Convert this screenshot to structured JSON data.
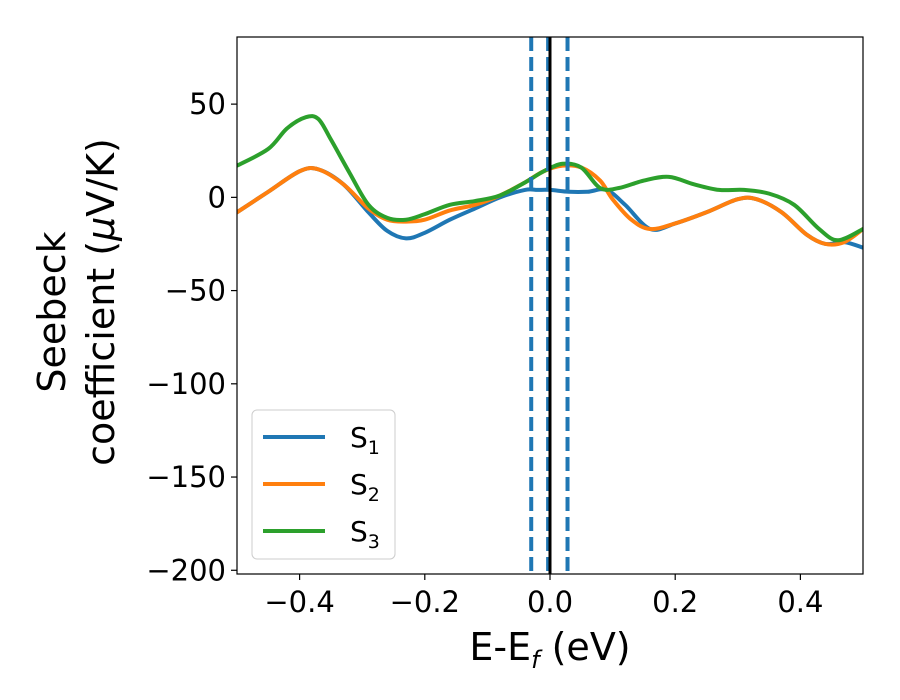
{
  "chart_data": {
    "type": "line",
    "xlabel": "E-E",
    "xlabel_sub": "f",
    "xlabel_unit": " (eV)",
    "ylabel_line1": "Seebeck",
    "ylabel_line2": "coefficient  (",
    "ylabel_mu": "μ",
    "ylabel_unit": "V/K)",
    "xlim": [
      -0.5,
      0.5
    ],
    "ylim": [
      -202,
      86
    ],
    "x_ticks": [
      -0.4,
      -0.2,
      0.0,
      0.2,
      0.4
    ],
    "x_tick_labels": [
      "−0.4",
      "−0.2",
      "0.0",
      "0.2",
      "0.4"
    ],
    "y_ticks": [
      50,
      0,
      -50,
      -100,
      -150,
      -200
    ],
    "y_tick_labels": [
      "50",
      "0",
      "−50",
      "−100",
      "−150",
      "−200"
    ],
    "grid": false,
    "legend_position": "lower-left",
    "vertical_lines": [
      {
        "x": -0.03,
        "style": "dashed",
        "color": "#1f77b4"
      },
      {
        "x": -0.003,
        "style": "dashed",
        "color": "#1f77b4"
      },
      {
        "x": 0.0,
        "style": "solid",
        "color": "#000000"
      },
      {
        "x": 0.028,
        "style": "dashed",
        "color": "#1f77b4"
      }
    ],
    "series": [
      {
        "name": "S",
        "name_sub": "1",
        "color": "#1f77b4",
        "x": [
          -0.5,
          -0.45,
          -0.4,
          -0.37,
          -0.33,
          -0.29,
          -0.26,
          -0.23,
          -0.2,
          -0.16,
          -0.12,
          -0.08,
          -0.04,
          -0.02,
          0.0,
          0.03,
          0.06,
          0.09,
          0.12,
          0.16,
          0.2,
          0.25,
          0.3,
          0.33,
          0.37,
          0.41,
          0.44,
          0.47,
          0.5
        ],
        "y": [
          -8,
          3,
          14,
          15,
          7,
          -8,
          -18,
          -22,
          -19,
          -12,
          -6,
          0,
          4,
          4,
          4,
          3,
          3,
          4,
          -4,
          -17,
          -14,
          -8,
          -1,
          -1,
          -8,
          -20,
          -25,
          -24,
          -27
        ]
      },
      {
        "name": "S",
        "name_sub": "2",
        "color": "#ff7f0e",
        "x": [
          -0.5,
          -0.45,
          -0.4,
          -0.37,
          -0.33,
          -0.29,
          -0.26,
          -0.23,
          -0.2,
          -0.16,
          -0.12,
          -0.08,
          -0.04,
          -0.01,
          0.02,
          0.05,
          0.08,
          0.1,
          0.13,
          0.16,
          0.2,
          0.25,
          0.3,
          0.33,
          0.37,
          0.41,
          0.44,
          0.47,
          0.5
        ],
        "y": [
          -8,
          3,
          14,
          15,
          7,
          -6,
          -12,
          -13,
          -12,
          -7,
          -4,
          1,
          8,
          14,
          17,
          16,
          9,
          -1,
          -12,
          -17,
          -14,
          -8,
          -1,
          -1,
          -8,
          -20,
          -25,
          -24,
          -17
        ]
      },
      {
        "name": "S",
        "name_sub": "3",
        "color": "#2ca02c",
        "x": [
          -0.5,
          -0.45,
          -0.42,
          -0.39,
          -0.37,
          -0.35,
          -0.32,
          -0.29,
          -0.26,
          -0.23,
          -0.2,
          -0.16,
          -0.12,
          -0.08,
          -0.04,
          -0.01,
          0.02,
          0.05,
          0.08,
          0.11,
          0.15,
          0.19,
          0.23,
          0.27,
          0.31,
          0.35,
          0.39,
          0.43,
          0.46,
          0.5
        ],
        "y": [
          17,
          26,
          37,
          43,
          42,
          31,
          13,
          -4,
          -11,
          -12,
          -9,
          -4,
          -2,
          1,
          8,
          14,
          18,
          16,
          5,
          5,
          9,
          11,
          7,
          4,
          4,
          2,
          -4,
          -17,
          -23,
          -17
        ]
      }
    ]
  }
}
